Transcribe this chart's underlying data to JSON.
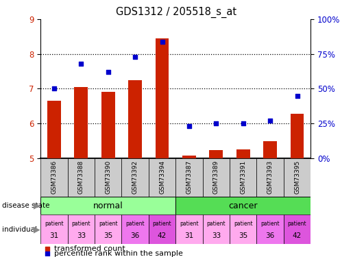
{
  "title": "GDS1312 / 205518_s_at",
  "samples": [
    "GSM73386",
    "GSM73388",
    "GSM73390",
    "GSM73392",
    "GSM73394",
    "GSM73387",
    "GSM73389",
    "GSM73391",
    "GSM73393",
    "GSM73395"
  ],
  "transformed_count": [
    6.65,
    7.05,
    6.9,
    7.25,
    8.45,
    5.08,
    5.22,
    5.25,
    5.48,
    6.28
  ],
  "percentile_rank": [
    50,
    68,
    62,
    73,
    84,
    23,
    25,
    25,
    27,
    45
  ],
  "ylim_left": [
    5,
    9
  ],
  "ylim_right": [
    0,
    100
  ],
  "yticks_left": [
    5,
    6,
    7,
    8,
    9
  ],
  "yticks_right": [
    0,
    25,
    50,
    75,
    100
  ],
  "ytick_labels_right": [
    "0%",
    "25%",
    "50%",
    "75%",
    "100%"
  ],
  "bar_color": "#cc2200",
  "dot_color": "#0000cc",
  "individual_numbers": [
    31,
    33,
    35,
    36,
    42,
    31,
    33,
    35,
    36,
    42
  ],
  "individual_colors": [
    "#ffaaee",
    "#ffaaee",
    "#ffaaee",
    "#ee77ee",
    "#dd55dd",
    "#ffaaee",
    "#ffaaee",
    "#ffaaee",
    "#ee77ee",
    "#dd55dd"
  ],
  "normal_color": "#99ff99",
  "cancer_color": "#55dd55",
  "sample_bg_color": "#cccccc",
  "bg_color": "#ffffff"
}
